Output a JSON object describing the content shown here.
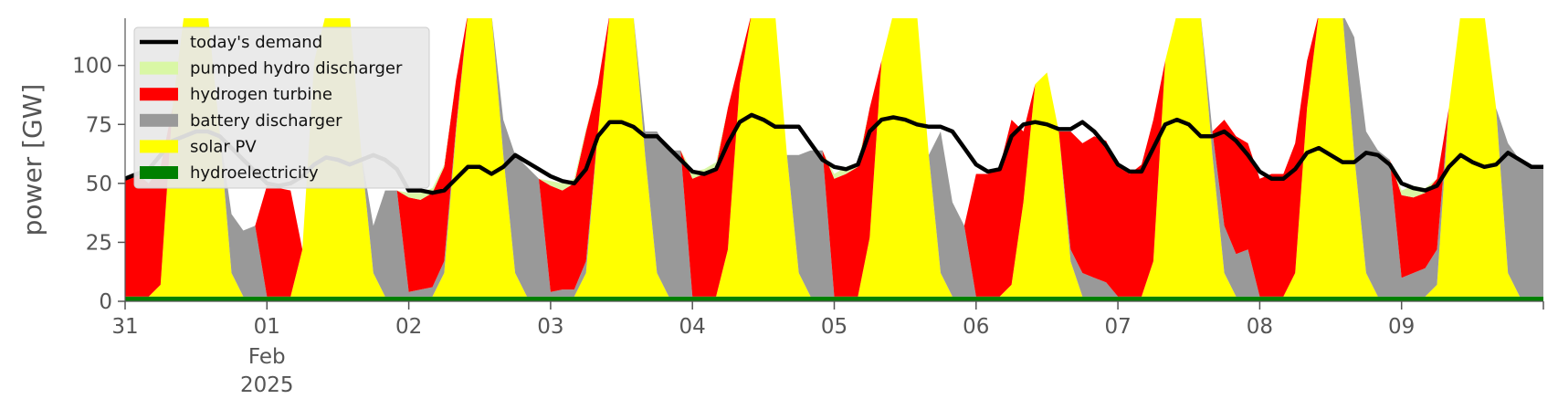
{
  "chart_data": {
    "type": "area",
    "ylabel": "power [GW]",
    "ylim": [
      0,
      120
    ],
    "yticks": [
      0,
      25,
      50,
      75,
      100
    ],
    "x_start": "2025-01-31T00:00",
    "x_end": "2025-02-10T00:00",
    "step_hours": 2,
    "xtick_labels": [
      "31",
      "01",
      "02",
      "03",
      "04",
      "05",
      "06",
      "07",
      "08",
      "09"
    ],
    "xtick_sublabel": [
      "Feb",
      "2025"
    ],
    "grid": false,
    "legend_position": "upper-left",
    "legend": [
      {
        "label": "today's demand",
        "kind": "line",
        "color": "#000000"
      },
      {
        "label": "pumped hydro discharger",
        "kind": "area",
        "color": "#d9f7a5"
      },
      {
        "label": "hydrogen turbine",
        "kind": "area",
        "color": "#ff0000"
      },
      {
        "label": "battery discharger",
        "kind": "area",
        "color": "#999999"
      },
      {
        "label": "solar PV",
        "kind": "area",
        "color": "#ffff00"
      },
      {
        "label": "hydroelectricity",
        "kind": "area",
        "color": "#008000"
      }
    ],
    "days": [
      {
        "date": "2025-01-31",
        "hydroelectricity": [
          2,
          2,
          2,
          2,
          2,
          2,
          2,
          2,
          2,
          2,
          2,
          2
        ],
        "solar": [
          0,
          0,
          0,
          5,
          80,
          120,
          120,
          120,
          70,
          10,
          0,
          0
        ],
        "battery": [
          0,
          0,
          0,
          0,
          0,
          0,
          0,
          0,
          0,
          25,
          28,
          30
        ],
        "hydrogen": [
          50,
          52,
          48,
          50,
          0,
          0,
          0,
          0,
          0,
          0,
          0,
          0
        ],
        "pumped_hydro": [
          0,
          0,
          0,
          0,
          0,
          0,
          0,
          0,
          0,
          0,
          0,
          0
        ],
        "demand": [
          52,
          54,
          56,
          62,
          68,
          70,
          72,
          72,
          70,
          65,
          60,
          55
        ]
      },
      {
        "date": "2025-02-01",
        "hydroelectricity": [
          2,
          2,
          2,
          2,
          2,
          2,
          2,
          2,
          2,
          2,
          2,
          2
        ],
        "solar": [
          0,
          0,
          0,
          20,
          100,
          120,
          120,
          120,
          60,
          10,
          0,
          0
        ],
        "battery": [
          0,
          0,
          0,
          0,
          0,
          0,
          0,
          0,
          0,
          20,
          45,
          45
        ],
        "hydrogen": [
          47,
          46,
          45,
          0,
          0,
          0,
          0,
          0,
          0,
          0,
          0,
          0
        ],
        "pumped_hydro": [
          0,
          0,
          0,
          0,
          0,
          0,
          0,
          0,
          0,
          0,
          0,
          0
        ],
        "demand": [
          50,
          49,
          50,
          53,
          58,
          61,
          60,
          58,
          60,
          62,
          60,
          56
        ]
      },
      {
        "date": "2025-02-02",
        "hydroelectricity": [
          2,
          2,
          2,
          2,
          2,
          2,
          2,
          2,
          2,
          2,
          2,
          2
        ],
        "solar": [
          0,
          0,
          0,
          10,
          70,
          120,
          120,
          120,
          60,
          10,
          0,
          0
        ],
        "battery": [
          2,
          3,
          4,
          5,
          2,
          0,
          0,
          0,
          15,
          50,
          55,
          50
        ],
        "hydrogen": [
          40,
          38,
          40,
          40,
          20,
          0,
          0,
          0,
          0,
          0,
          0,
          0
        ],
        "pumped_hydro": [
          2,
          3,
          2,
          1,
          0,
          0,
          0,
          0,
          0,
          0,
          0,
          0
        ],
        "demand": [
          47,
          47,
          46,
          47,
          52,
          57,
          57,
          54,
          57,
          62,
          59,
          56
        ]
      },
      {
        "date": "2025-02-03",
        "hydroelectricity": [
          2,
          2,
          2,
          2,
          2,
          2,
          2,
          2,
          2,
          2,
          2,
          2
        ],
        "solar": [
          0,
          0,
          0,
          10,
          70,
          120,
          120,
          120,
          60,
          10,
          0,
          0
        ],
        "battery": [
          2,
          3,
          3,
          5,
          0,
          0,
          0,
          0,
          10,
          60,
          62,
          62
        ],
        "hydrogen": [
          45,
          42,
          45,
          55,
          20,
          0,
          0,
          0,
          0,
          0,
          0,
          0
        ],
        "pumped_hydro": [
          2,
          3,
          2,
          1,
          0,
          0,
          0,
          0,
          0,
          0,
          0,
          0
        ],
        "demand": [
          53,
          51,
          50,
          56,
          70,
          76,
          76,
          74,
          70,
          70,
          65,
          60
        ]
      },
      {
        "date": "2025-02-04",
        "hydroelectricity": [
          2,
          2,
          2,
          2,
          2,
          2,
          2,
          2,
          2,
          2,
          2,
          2
        ],
        "solar": [
          0,
          0,
          0,
          20,
          90,
          120,
          120,
          120,
          60,
          10,
          0,
          0
        ],
        "battery": [
          0,
          0,
          0,
          0,
          0,
          0,
          0,
          0,
          0,
          50,
          62,
          62
        ],
        "hydrogen": [
          50,
          52,
          55,
          60,
          10,
          0,
          0,
          0,
          0,
          0,
          0,
          0
        ],
        "pumped_hydro": [
          3,
          2,
          2,
          0,
          0,
          0,
          0,
          0,
          0,
          0,
          0,
          0
        ],
        "demand": [
          55,
          54,
          56,
          67,
          76,
          79,
          77,
          74,
          74,
          74,
          67,
          60
        ]
      },
      {
        "date": "2025-02-05",
        "hydroelectricity": [
          2,
          2,
          2,
          2,
          2,
          2,
          2,
          2,
          2,
          2,
          2,
          2
        ],
        "solar": [
          0,
          0,
          0,
          25,
          100,
          120,
          120,
          120,
          60,
          10,
          0,
          0
        ],
        "battery": [
          0,
          0,
          0,
          0,
          0,
          0,
          0,
          0,
          0,
          60,
          40,
          30
        ],
        "hydrogen": [
          50,
          52,
          55,
          55,
          0,
          0,
          0,
          0,
          0,
          0,
          0,
          0
        ],
        "pumped_hydro": [
          2,
          3,
          2,
          0,
          0,
          0,
          0,
          0,
          0,
          0,
          0,
          0
        ],
        "demand": [
          57,
          56,
          58,
          72,
          77,
          78,
          77,
          75,
          74,
          74,
          72,
          65
        ]
      },
      {
        "date": "2025-02-06",
        "hydroelectricity": [
          2,
          2,
          2,
          2,
          2,
          2,
          2,
          2,
          2,
          2,
          2,
          2
        ],
        "solar": [
          0,
          0,
          0,
          5,
          40,
          90,
          95,
          70,
          15,
          0,
          0,
          0
        ],
        "battery": [
          0,
          0,
          0,
          0,
          0,
          0,
          0,
          0,
          5,
          10,
          8,
          6
        ],
        "hydrogen": [
          52,
          52,
          55,
          70,
          30,
          0,
          0,
          0,
          50,
          55,
          60,
          60
        ],
        "pumped_hydro": [
          0,
          0,
          0,
          0,
          0,
          0,
          0,
          0,
          0,
          0,
          0,
          0
        ],
        "demand": [
          58,
          55,
          56,
          70,
          75,
          76,
          75,
          73,
          73,
          76,
          72,
          66
        ]
      },
      {
        "date": "2025-02-07",
        "hydroelectricity": [
          2,
          2,
          2,
          2,
          2,
          2,
          2,
          2,
          2,
          2,
          2,
          2
        ],
        "solar": [
          0,
          0,
          0,
          15,
          100,
          120,
          120,
          120,
          60,
          10,
          0,
          0
        ],
        "battery": [
          0,
          0,
          0,
          0,
          0,
          0,
          0,
          0,
          10,
          20,
          18,
          20
        ],
        "hydrogen": [
          55,
          52,
          56,
          60,
          0,
          0,
          0,
          0,
          0,
          45,
          50,
          45
        ],
        "pumped_hydro": [
          0,
          0,
          0,
          0,
          0,
          0,
          0,
          0,
          0,
          0,
          0,
          0
        ],
        "demand": [
          58,
          55,
          55,
          65,
          75,
          77,
          75,
          70,
          70,
          72,
          68,
          62
        ]
      },
      {
        "date": "2025-02-08",
        "hydroelectricity": [
          2,
          2,
          2,
          2,
          2,
          2,
          2,
          2,
          2,
          2,
          2,
          2
        ],
        "solar": [
          0,
          0,
          0,
          10,
          80,
          120,
          120,
          120,
          60,
          10,
          0,
          0
        ],
        "battery": [
          0,
          0,
          0,
          0,
          0,
          0,
          0,
          0,
          50,
          60,
          62,
          58
        ],
        "hydrogen": [
          50,
          52,
          52,
          55,
          20,
          0,
          0,
          0,
          0,
          0,
          0,
          0
        ],
        "pumped_hydro": [
          0,
          0,
          0,
          0,
          0,
          0,
          0,
          0,
          0,
          0,
          0,
          0
        ],
        "demand": [
          55,
          52,
          52,
          56,
          63,
          65,
          62,
          59,
          59,
          63,
          62,
          58
        ]
      },
      {
        "date": "2025-02-09",
        "hydroelectricity": [
          2,
          2,
          2,
          2,
          2,
          2,
          2,
          2,
          2,
          2,
          2,
          2
        ],
        "solar": [
          0,
          0,
          0,
          5,
          80,
          120,
          120,
          120,
          80,
          10,
          0,
          0
        ],
        "battery": [
          8,
          10,
          12,
          15,
          0,
          0,
          0,
          0,
          0,
          55,
          58,
          55
        ],
        "hydrogen": [
          35,
          32,
          32,
          30,
          0,
          0,
          0,
          0,
          0,
          0,
          0,
          0
        ],
        "pumped_hydro": [
          2,
          5,
          2,
          0,
          0,
          0,
          0,
          0,
          0,
          0,
          0,
          0
        ],
        "demand": [
          50,
          48,
          47,
          49,
          57,
          62,
          59,
          57,
          58,
          63,
          60,
          57
        ]
      }
    ]
  }
}
